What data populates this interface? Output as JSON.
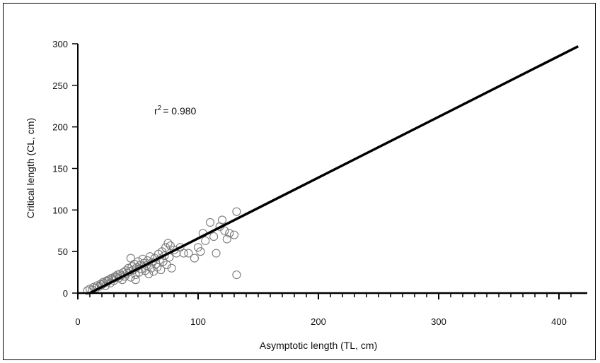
{
  "chart_data": {
    "type": "scatter",
    "title": "",
    "xlabel": "Asymptotic length (TL, cm)",
    "ylabel": "Critical length (CL, cm)",
    "xlim": [
      0,
      420
    ],
    "ylim": [
      0,
      300
    ],
    "xticks": [
      0,
      100,
      200,
      300,
      400
    ],
    "yticks": [
      0,
      50,
      100,
      150,
      200,
      250,
      300
    ],
    "annotation": {
      "prefix": "r",
      "superscript": "2",
      "text": "= 0.980"
    },
    "grid": false,
    "legend": "none",
    "marker": "open-circle",
    "marker_color": "#7a7a7a",
    "line_color": "#000000",
    "fit_line": {
      "x": [
        10,
        416
      ],
      "y": [
        0,
        297
      ]
    },
    "points": [
      [
        8,
        3
      ],
      [
        10,
        5
      ],
      [
        12,
        4
      ],
      [
        13,
        7
      ],
      [
        15,
        6
      ],
      [
        16,
        9
      ],
      [
        18,
        8
      ],
      [
        19,
        11
      ],
      [
        20,
        10
      ],
      [
        21,
        13
      ],
      [
        22,
        12
      ],
      [
        23,
        9
      ],
      [
        24,
        15
      ],
      [
        25,
        14
      ],
      [
        26,
        16
      ],
      [
        27,
        12
      ],
      [
        28,
        18
      ],
      [
        29,
        17
      ],
      [
        30,
        15
      ],
      [
        31,
        20
      ],
      [
        32,
        19
      ],
      [
        33,
        22
      ],
      [
        34,
        18
      ],
      [
        35,
        23
      ],
      [
        36,
        21
      ],
      [
        37,
        16
      ],
      [
        38,
        25
      ],
      [
        39,
        20
      ],
      [
        40,
        27
      ],
      [
        41,
        24
      ],
      [
        42,
        30
      ],
      [
        43,
        26
      ],
      [
        44,
        19
      ],
      [
        45,
        32
      ],
      [
        46,
        28
      ],
      [
        47,
        35
      ],
      [
        48,
        22
      ],
      [
        49,
        31
      ],
      [
        50,
        38
      ],
      [
        51,
        25
      ],
      [
        52,
        34
      ],
      [
        53,
        29
      ],
      [
        54,
        41
      ],
      [
        55,
        36
      ],
      [
        56,
        27
      ],
      [
        57,
        33
      ],
      [
        58,
        39
      ],
      [
        59,
        23
      ],
      [
        60,
        44
      ],
      [
        61,
        30
      ],
      [
        62,
        37
      ],
      [
        63,
        26
      ],
      [
        64,
        42
      ],
      [
        65,
        35
      ],
      [
        66,
        31
      ],
      [
        67,
        47
      ],
      [
        68,
        40
      ],
      [
        69,
        28
      ],
      [
        70,
        50
      ],
      [
        71,
        38
      ],
      [
        72,
        45
      ],
      [
        73,
        55
      ],
      [
        74,
        34
      ],
      [
        75,
        60
      ],
      [
        76,
        43
      ],
      [
        77,
        57
      ],
      [
        78,
        30
      ],
      [
        80,
        52
      ],
      [
        82,
        48
      ],
      [
        85,
        55
      ],
      [
        88,
        48
      ],
      [
        92,
        48
      ],
      [
        97,
        42
      ],
      [
        100,
        55
      ],
      [
        102,
        50
      ],
      [
        104,
        72
      ],
      [
        106,
        63
      ],
      [
        110,
        85
      ],
      [
        113,
        68
      ],
      [
        115,
        48
      ],
      [
        118,
        80
      ],
      [
        120,
        88
      ],
      [
        122,
        75
      ],
      [
        124,
        65
      ],
      [
        126,
        72
      ],
      [
        130,
        70
      ],
      [
        132,
        98
      ],
      [
        132,
        22
      ],
      [
        44,
        42
      ],
      [
        48,
        16
      ]
    ]
  }
}
